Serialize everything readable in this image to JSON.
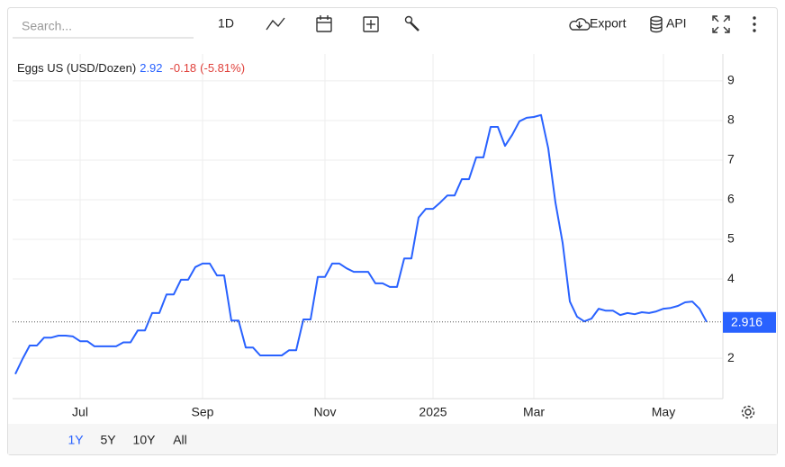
{
  "toolbar": {
    "search_placeholder": "Search...",
    "interval": "1D",
    "export": "Export",
    "api": "API"
  },
  "range_buttons": [
    "1Y",
    "5Y",
    "10Y",
    "All"
  ],
  "chart_data": {
    "type": "line",
    "title": "Eggs US (USD/Dozen)",
    "last": 2.92,
    "change": -0.18,
    "change_pct": "(-5.81%)",
    "categories": [
      null,
      null,
      null,
      null,
      null,
      null,
      null,
      null,
      null,
      "Jul",
      null,
      null,
      null,
      null,
      null,
      null,
      null,
      null,
      null,
      null,
      null,
      null,
      null,
      null,
      null,
      null,
      "Sep",
      null,
      null,
      null,
      null,
      null,
      null,
      null,
      null,
      null,
      null,
      null,
      null,
      null,
      null,
      null,
      null,
      "Nov",
      null,
      null,
      null,
      null,
      null,
      null,
      null,
      null,
      null,
      null,
      null,
      null,
      null,
      null,
      "2025",
      null,
      null,
      null,
      null,
      null,
      null,
      null,
      null,
      null,
      null,
      null,
      null,
      null,
      "Mar",
      null,
      null,
      null,
      null,
      null,
      null,
      null,
      null,
      null,
      null,
      null,
      null,
      null,
      null,
      null,
      null,
      null,
      "May",
      null,
      null,
      null,
      null,
      null,
      null
    ],
    "series": [
      {
        "name": "Eggs US",
        "color": "#2962ff",
        "values": [
          1.6,
          1.98,
          2.32,
          2.32,
          2.52,
          2.52,
          2.57,
          2.57,
          2.55,
          2.43,
          2.43,
          2.3,
          2.3,
          2.3,
          2.3,
          2.4,
          2.4,
          2.7,
          2.7,
          3.14,
          3.14,
          3.61,
          3.61,
          3.98,
          3.98,
          4.3,
          4.39,
          4.39,
          4.09,
          4.09,
          2.95,
          2.95,
          2.27,
          2.27,
          2.07,
          2.07,
          2.07,
          2.07,
          2.2,
          2.2,
          2.98,
          2.98,
          4.05,
          4.05,
          4.39,
          4.39,
          4.27,
          4.18,
          4.18,
          4.18,
          3.89,
          3.89,
          3.8,
          3.8,
          4.52,
          4.52,
          5.55,
          5.77,
          5.77,
          5.93,
          6.11,
          6.11,
          6.52,
          6.52,
          7.07,
          7.07,
          7.84,
          7.84,
          7.36,
          7.64,
          7.98,
          8.07,
          8.09,
          8.14,
          7.3,
          5.93,
          4.91,
          3.43,
          3.05,
          2.93,
          3.0,
          3.25,
          3.2,
          3.2,
          3.09,
          3.14,
          3.11,
          3.16,
          3.14,
          3.18,
          3.25,
          3.27,
          3.32,
          3.41,
          3.43,
          3.25,
          2.916
        ]
      }
    ],
    "ylim": [
      0.98,
      9.68
    ],
    "yticks": [
      2,
      4,
      5,
      6,
      7,
      8,
      9
    ],
    "grid": true
  }
}
